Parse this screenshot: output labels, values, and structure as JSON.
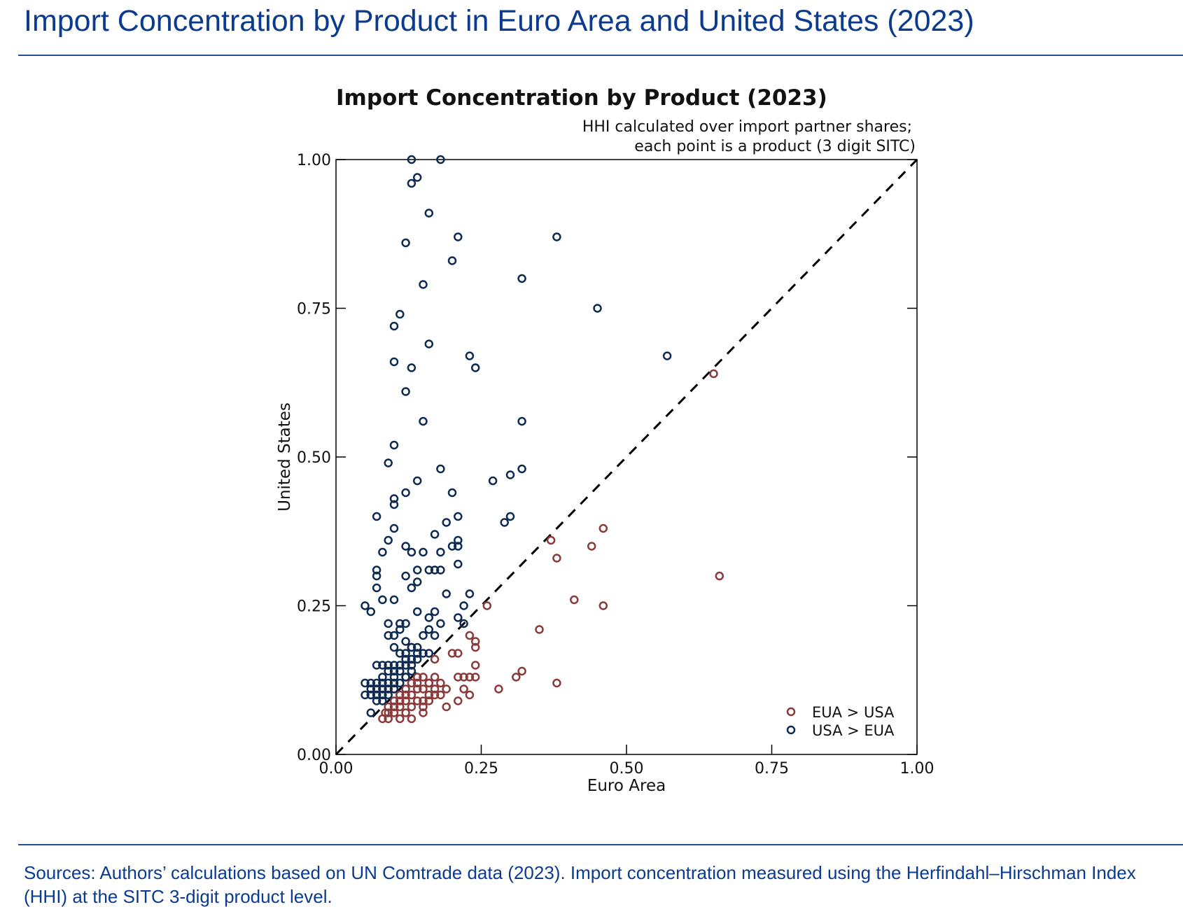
{
  "page": {
    "title": "Import Concentration by Product in Euro Area and United States (2023)",
    "sources": "Sources: Authors’ calculations based on UN Comtrade data (2023). Import concentration measured using the Herfindahl–Hirschman Index (HHI) at the SITC 3-digit product level."
  },
  "colors": {
    "heading": "#0b3b8f",
    "eua_gt_usa": "#8b3a3a",
    "usa_gt_eua": "#0d2a52",
    "axis": "#000000"
  },
  "chart_data": {
    "type": "scatter",
    "title": "Import Concentration by Product (2023)",
    "note_lines": [
      "HHI calculated over import partner shares;",
      "each point is a product (3 digit SITC)"
    ],
    "xlabel": "Euro Area",
    "ylabel": "United States",
    "xlim": [
      0,
      1
    ],
    "ylim": [
      0,
      1
    ],
    "xticks": [
      "0.00",
      "0.25",
      "0.50",
      "0.75",
      "1.00"
    ],
    "yticks": [
      "0.00",
      "0.25",
      "0.50",
      "0.75",
      "1.00"
    ],
    "reference_line": "y = x (dashed)",
    "legend_position": "bottom-right",
    "series": [
      {
        "name": "EUA > USA",
        "color": "#8b3a3a",
        "points": [
          [
            0.65,
            0.64
          ],
          [
            0.66,
            0.3
          ],
          [
            0.46,
            0.38
          ],
          [
            0.44,
            0.35
          ],
          [
            0.46,
            0.25
          ],
          [
            0.41,
            0.26
          ],
          [
            0.38,
            0.33
          ],
          [
            0.37,
            0.36
          ],
          [
            0.35,
            0.21
          ],
          [
            0.38,
            0.12
          ],
          [
            0.32,
            0.14
          ],
          [
            0.31,
            0.13
          ],
          [
            0.28,
            0.11
          ],
          [
            0.26,
            0.25
          ],
          [
            0.24,
            0.19
          ],
          [
            0.24,
            0.18
          ],
          [
            0.23,
            0.2
          ],
          [
            0.24,
            0.15
          ],
          [
            0.24,
            0.13
          ],
          [
            0.23,
            0.13
          ],
          [
            0.22,
            0.13
          ],
          [
            0.23,
            0.1
          ],
          [
            0.22,
            0.11
          ],
          [
            0.21,
            0.17
          ],
          [
            0.2,
            0.17
          ],
          [
            0.21,
            0.13
          ],
          [
            0.21,
            0.09
          ],
          [
            0.19,
            0.11
          ],
          [
            0.19,
            0.08
          ],
          [
            0.17,
            0.16
          ],
          [
            0.18,
            0.12
          ],
          [
            0.17,
            0.13
          ],
          [
            0.17,
            0.11
          ],
          [
            0.16,
            0.12
          ],
          [
            0.16,
            0.1
          ],
          [
            0.15,
            0.13
          ],
          [
            0.15,
            0.11
          ],
          [
            0.15,
            0.08
          ],
          [
            0.15,
            0.07
          ],
          [
            0.14,
            0.13
          ],
          [
            0.14,
            0.11
          ],
          [
            0.14,
            0.09
          ],
          [
            0.13,
            0.12
          ],
          [
            0.13,
            0.1
          ],
          [
            0.13,
            0.08
          ],
          [
            0.12,
            0.13
          ],
          [
            0.12,
            0.11
          ],
          [
            0.12,
            0.09
          ],
          [
            0.12,
            0.07
          ],
          [
            0.11,
            0.1
          ],
          [
            0.11,
            0.08
          ],
          [
            0.11,
            0.06
          ],
          [
            0.1,
            0.09
          ],
          [
            0.1,
            0.07
          ],
          [
            0.09,
            0.08
          ],
          [
            0.09,
            0.06
          ],
          [
            0.085,
            0.07
          ],
          [
            0.08,
            0.06
          ],
          [
            0.1,
            0.11
          ],
          [
            0.16,
            0.09
          ],
          [
            0.18,
            0.1
          ],
          [
            0.13,
            0.06
          ],
          [
            0.14,
            0.12
          ],
          [
            0.12,
            0.1
          ],
          [
            0.11,
            0.09
          ],
          [
            0.16,
            0.12
          ],
          [
            0.1,
            0.08
          ],
          [
            0.09,
            0.07
          ],
          [
            0.17,
            0.1
          ],
          [
            0.15,
            0.09
          ]
        ]
      },
      {
        "name": "USA > EUA",
        "color": "#0d2a52",
        "points": [
          [
            0.13,
            1.0
          ],
          [
            0.18,
            1.0
          ],
          [
            0.14,
            0.97
          ],
          [
            0.13,
            0.96
          ],
          [
            0.16,
            0.91
          ],
          [
            0.21,
            0.87
          ],
          [
            0.38,
            0.87
          ],
          [
            0.12,
            0.86
          ],
          [
            0.2,
            0.83
          ],
          [
            0.32,
            0.8
          ],
          [
            0.15,
            0.79
          ],
          [
            0.45,
            0.75
          ],
          [
            0.11,
            0.74
          ],
          [
            0.1,
            0.72
          ],
          [
            0.16,
            0.69
          ],
          [
            0.57,
            0.67
          ],
          [
            0.23,
            0.67
          ],
          [
            0.24,
            0.65
          ],
          [
            0.1,
            0.66
          ],
          [
            0.13,
            0.65
          ],
          [
            0.12,
            0.61
          ],
          [
            0.15,
            0.56
          ],
          [
            0.32,
            0.56
          ],
          [
            0.1,
            0.52
          ],
          [
            0.09,
            0.49
          ],
          [
            0.18,
            0.48
          ],
          [
            0.32,
            0.48
          ],
          [
            0.3,
            0.47
          ],
          [
            0.27,
            0.46
          ],
          [
            0.14,
            0.46
          ],
          [
            0.12,
            0.44
          ],
          [
            0.2,
            0.44
          ],
          [
            0.1,
            0.43
          ],
          [
            0.1,
            0.42
          ],
          [
            0.07,
            0.4
          ],
          [
            0.21,
            0.4
          ],
          [
            0.3,
            0.4
          ],
          [
            0.29,
            0.39
          ],
          [
            0.19,
            0.39
          ],
          [
            0.1,
            0.38
          ],
          [
            0.17,
            0.37
          ],
          [
            0.09,
            0.36
          ],
          [
            0.21,
            0.36
          ],
          [
            0.2,
            0.35
          ],
          [
            0.21,
            0.35
          ],
          [
            0.18,
            0.34
          ],
          [
            0.08,
            0.34
          ],
          [
            0.12,
            0.35
          ],
          [
            0.13,
            0.34
          ],
          [
            0.15,
            0.34
          ],
          [
            0.21,
            0.32
          ],
          [
            0.07,
            0.31
          ],
          [
            0.14,
            0.31
          ],
          [
            0.16,
            0.31
          ],
          [
            0.17,
            0.31
          ],
          [
            0.18,
            0.31
          ],
          [
            0.07,
            0.3
          ],
          [
            0.12,
            0.3
          ],
          [
            0.14,
            0.29
          ],
          [
            0.13,
            0.28
          ],
          [
            0.07,
            0.28
          ],
          [
            0.19,
            0.27
          ],
          [
            0.23,
            0.27
          ],
          [
            0.08,
            0.26
          ],
          [
            0.1,
            0.26
          ],
          [
            0.05,
            0.25
          ],
          [
            0.06,
            0.24
          ],
          [
            0.14,
            0.24
          ],
          [
            0.17,
            0.24
          ],
          [
            0.22,
            0.25
          ],
          [
            0.21,
            0.23
          ],
          [
            0.16,
            0.23
          ],
          [
            0.12,
            0.22
          ],
          [
            0.09,
            0.22
          ],
          [
            0.11,
            0.22
          ],
          [
            0.18,
            0.22
          ],
          [
            0.22,
            0.22
          ],
          [
            0.16,
            0.21
          ],
          [
            0.17,
            0.2
          ],
          [
            0.15,
            0.2
          ],
          [
            0.1,
            0.2
          ],
          [
            0.11,
            0.21
          ],
          [
            0.09,
            0.2
          ],
          [
            0.12,
            0.19
          ],
          [
            0.13,
            0.18
          ],
          [
            0.14,
            0.18
          ],
          [
            0.16,
            0.17
          ],
          [
            0.1,
            0.18
          ],
          [
            0.11,
            0.17
          ],
          [
            0.12,
            0.17
          ],
          [
            0.13,
            0.16
          ],
          [
            0.14,
            0.16
          ],
          [
            0.09,
            0.15
          ],
          [
            0.08,
            0.15
          ],
          [
            0.07,
            0.15
          ],
          [
            0.1,
            0.15
          ],
          [
            0.11,
            0.14
          ],
          [
            0.12,
            0.15
          ],
          [
            0.13,
            0.14
          ],
          [
            0.09,
            0.14
          ],
          [
            0.1,
            0.13
          ],
          [
            0.11,
            0.12
          ],
          [
            0.08,
            0.13
          ],
          [
            0.08,
            0.12
          ],
          [
            0.07,
            0.12
          ],
          [
            0.06,
            0.12
          ],
          [
            0.05,
            0.12
          ],
          [
            0.05,
            0.1
          ],
          [
            0.06,
            0.1
          ],
          [
            0.07,
            0.1
          ],
          [
            0.07,
            0.09
          ],
          [
            0.08,
            0.11
          ],
          [
            0.09,
            0.11
          ],
          [
            0.1,
            0.12
          ],
          [
            0.09,
            0.1
          ],
          [
            0.08,
            0.1
          ],
          [
            0.07,
            0.11
          ],
          [
            0.06,
            0.07
          ],
          [
            0.08,
            0.09
          ],
          [
            0.06,
            0.11
          ],
          [
            0.11,
            0.15
          ],
          [
            0.12,
            0.13
          ],
          [
            0.1,
            0.11
          ],
          [
            0.09,
            0.12
          ],
          [
            0.13,
            0.15
          ],
          [
            0.14,
            0.17
          ],
          [
            0.12,
            0.16
          ],
          [
            0.1,
            0.14
          ],
          [
            0.15,
            0.17
          ],
          [
            0.13,
            0.18
          ]
        ]
      }
    ]
  }
}
